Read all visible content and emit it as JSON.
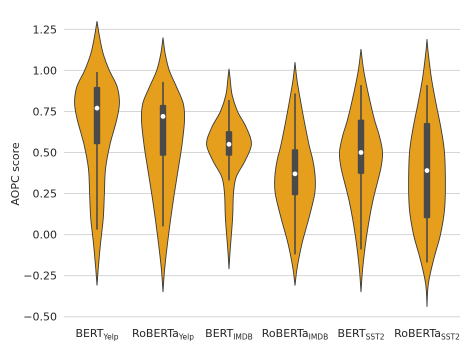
{
  "chart_data": {
    "type": "violin",
    "ylabel": "AOPC score",
    "ylim": [
      -0.52,
      1.38
    ],
    "yticks": [
      {
        "v": -0.5,
        "label": "−0.50"
      },
      {
        "v": -0.25,
        "label": "−0.25"
      },
      {
        "v": 0.0,
        "label": "0.00"
      },
      {
        "v": 0.25,
        "label": "0.25"
      },
      {
        "v": 0.5,
        "label": "0.50"
      },
      {
        "v": 0.75,
        "label": "0.75"
      },
      {
        "v": 1.0,
        "label": "1.00"
      },
      {
        "v": 1.25,
        "label": "1.25"
      }
    ],
    "grid": "horizontal",
    "violin_color": "#E69F1C",
    "box_color": "#4a4a4a",
    "categories": [
      {
        "base": "BERT",
        "sub": "Yelp"
      },
      {
        "base": "RoBERTa",
        "sub": "Yelp"
      },
      {
        "base": "BERT",
        "sub": "IMDB"
      },
      {
        "base": "RoBERTa",
        "sub": "IMDB"
      },
      {
        "base": "BERT",
        "sub": "SST2"
      },
      {
        "base": "RoBERTa",
        "sub": "SST2"
      }
    ],
    "violins": [
      {
        "min": 0.03,
        "q1": 0.55,
        "median": 0.77,
        "q3": 0.9,
        "max": 0.99,
        "top": 1.3,
        "bottom": -0.31,
        "density": [
          [
            -0.31,
            0.02
          ],
          [
            -0.2,
            0.06
          ],
          [
            -0.05,
            0.16
          ],
          [
            0.1,
            0.28
          ],
          [
            0.25,
            0.33
          ],
          [
            0.4,
            0.38
          ],
          [
            0.55,
            0.58
          ],
          [
            0.7,
            0.88
          ],
          [
            0.8,
            1.0
          ],
          [
            0.9,
            0.9
          ],
          [
            1.0,
            0.55
          ],
          [
            1.1,
            0.28
          ],
          [
            1.2,
            0.12
          ],
          [
            1.3,
            0.01
          ]
        ]
      },
      {
        "min": 0.05,
        "q1": 0.48,
        "median": 0.72,
        "q3": 0.79,
        "max": 0.93,
        "top": 1.2,
        "bottom": -0.35,
        "density": [
          [
            -0.35,
            0.01
          ],
          [
            -0.2,
            0.08
          ],
          [
            0.0,
            0.25
          ],
          [
            0.2,
            0.45
          ],
          [
            0.4,
            0.68
          ],
          [
            0.55,
            0.85
          ],
          [
            0.7,
            0.96
          ],
          [
            0.8,
            0.9
          ],
          [
            0.9,
            0.6
          ],
          [
            1.0,
            0.28
          ],
          [
            1.1,
            0.1
          ],
          [
            1.2,
            0.01
          ]
        ]
      },
      {
        "min": 0.33,
        "q1": 0.48,
        "median": 0.55,
        "q3": 0.63,
        "max": 0.82,
        "top": 1.01,
        "bottom": -0.21,
        "density": [
          [
            -0.21,
            0.01
          ],
          [
            -0.1,
            0.05
          ],
          [
            0.1,
            0.16
          ],
          [
            0.25,
            0.2
          ],
          [
            0.35,
            0.32
          ],
          [
            0.45,
            0.72
          ],
          [
            0.55,
            1.0
          ],
          [
            0.65,
            0.78
          ],
          [
            0.75,
            0.38
          ],
          [
            0.85,
            0.14
          ],
          [
            0.95,
            0.05
          ],
          [
            1.01,
            0.01
          ]
        ]
      },
      {
        "min": -0.12,
        "q1": 0.24,
        "median": 0.37,
        "q3": 0.52,
        "max": 0.86,
        "top": 1.05,
        "bottom": -0.31,
        "density": [
          [
            -0.31,
            0.01
          ],
          [
            -0.2,
            0.1
          ],
          [
            -0.05,
            0.32
          ],
          [
            0.1,
            0.62
          ],
          [
            0.25,
            0.88
          ],
          [
            0.35,
            0.9
          ],
          [
            0.45,
            0.8
          ],
          [
            0.55,
            0.62
          ],
          [
            0.7,
            0.4
          ],
          [
            0.85,
            0.2
          ],
          [
            0.95,
            0.08
          ],
          [
            1.05,
            0.01
          ]
        ]
      },
      {
        "min": -0.09,
        "q1": 0.37,
        "median": 0.5,
        "q3": 0.7,
        "max": 0.91,
        "top": 1.13,
        "bottom": -0.35,
        "density": [
          [
            -0.35,
            0.01
          ],
          [
            -0.2,
            0.08
          ],
          [
            0.0,
            0.26
          ],
          [
            0.2,
            0.52
          ],
          [
            0.4,
            0.88
          ],
          [
            0.5,
            0.96
          ],
          [
            0.6,
            0.82
          ],
          [
            0.7,
            0.6
          ],
          [
            0.85,
            0.34
          ],
          [
            1.0,
            0.12
          ],
          [
            1.13,
            0.01
          ]
        ]
      },
      {
        "min": -0.17,
        "q1": 0.1,
        "median": 0.39,
        "q3": 0.68,
        "max": 0.91,
        "top": 1.19,
        "bottom": -0.44,
        "density": [
          [
            -0.44,
            0.01
          ],
          [
            -0.3,
            0.06
          ],
          [
            -0.15,
            0.3
          ],
          [
            0.0,
            0.6
          ],
          [
            0.15,
            0.78
          ],
          [
            0.3,
            0.82
          ],
          [
            0.5,
            0.78
          ],
          [
            0.65,
            0.62
          ],
          [
            0.8,
            0.4
          ],
          [
            0.95,
            0.2
          ],
          [
            1.1,
            0.06
          ],
          [
            1.19,
            0.01
          ]
        ]
      }
    ]
  }
}
